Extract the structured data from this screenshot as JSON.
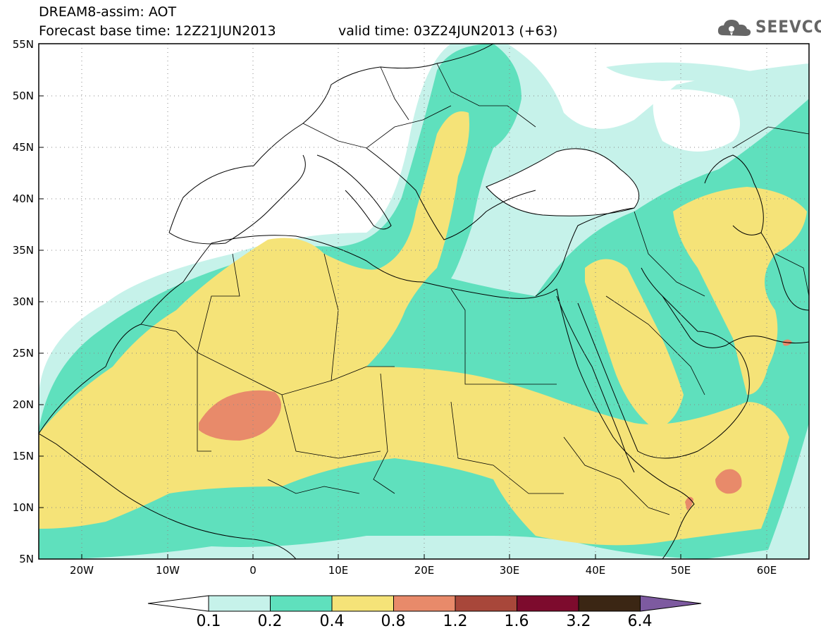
{
  "header": {
    "title_line1": "DREAM8-assim: AOT",
    "title_line2": "Forecast base time: 12Z21JUN2013",
    "valid_time": "valid time: 03Z24JUN2013 (+63)",
    "logo_text": "SEEVCCC"
  },
  "map": {
    "lat_labels": [
      "55N",
      "50N",
      "45N",
      "40N",
      "35N",
      "30N",
      "25N",
      "20N",
      "15N",
      "10N",
      "5N"
    ],
    "lon_labels": [
      "20W",
      "10W",
      "0",
      "10E",
      "20E",
      "30E",
      "40E",
      "50E",
      "60E"
    ]
  },
  "colorbar": {
    "labels": [
      "0.1",
      "0.2",
      "0.4",
      "0.8",
      "1.2",
      "1.6",
      "3.2",
      "6.4"
    ],
    "colors": [
      "#c6f2ea",
      "#5fe0bd",
      "#f5e378",
      "#e88a6a",
      "#a8473a",
      "#7d0b2d",
      "#3b2614",
      "#7d5aa0"
    ]
  },
  "colors": {
    "level_0_1": "#c6f2ea",
    "level_0_2": "#5fe0bd",
    "level_0_4": "#f5e378",
    "level_0_8": "#e88a6a"
  }
}
